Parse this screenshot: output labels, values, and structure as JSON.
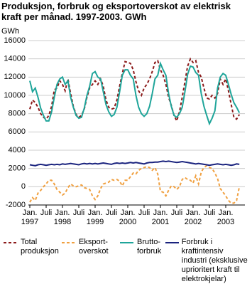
{
  "chart_data": {
    "type": "line",
    "title": "Produksjon, forbruk og eksportoverskot av elektrisk\nkraft per månad. 1997-2003. GWh",
    "y_label": "GWh",
    "categories": [
      "Jan.",
      null,
      null,
      null,
      null,
      null,
      "Juli",
      null,
      null,
      null,
      null,
      null,
      "Jan.",
      null,
      null,
      null,
      null,
      null,
      "Juli",
      null,
      null,
      null,
      null,
      null,
      "Jan.",
      null,
      null,
      null,
      null,
      null,
      "Juli",
      null,
      null,
      null,
      null,
      null,
      "Jan.",
      null,
      null,
      null,
      null,
      null,
      "Juli",
      null,
      null,
      null,
      null,
      null,
      "Jan.",
      null,
      null,
      null,
      null,
      null,
      "Juli",
      null,
      null,
      null,
      null,
      null,
      "Jan.",
      null,
      null,
      null,
      null,
      null,
      "Juli",
      null,
      null,
      null,
      null,
      null,
      "Jan.",
      null,
      null,
      null,
      null,
      null
    ],
    "years": [
      "1997",
      "1998",
      "1999",
      "2000",
      "2001",
      "2002",
      "2003"
    ],
    "ylim": [
      -2000,
      16000
    ],
    "yticks": [
      -2000,
      0,
      2000,
      4000,
      6000,
      8000,
      10000,
      12000,
      14000,
      16000
    ],
    "grid": true,
    "series": [
      {
        "name": "Total\nproduksjon",
        "color": "#8b1a1a",
        "dash": "4,3",
        "values": [
          8500,
          9500,
          9200,
          8700,
          8000,
          7600,
          7400,
          7800,
          8800,
          10600,
          10800,
          11600,
          11200,
          10500,
          11800,
          10200,
          8800,
          7900,
          7600,
          7800,
          8500,
          9800,
          10800,
          11200,
          11600,
          11200,
          11800,
          11000,
          9500,
          8700,
          8500,
          8600,
          9500,
          11000,
          12400,
          13700,
          13600,
          13500,
          12800,
          11500,
          10500,
          10000,
          10800,
          11200,
          11800,
          12600,
          13600,
          13800,
          12800,
          12200,
          11200,
          9800,
          8900,
          7800,
          7200,
          8200,
          9800,
          11500,
          13200,
          14000,
          13600,
          13800,
          12500,
          12000,
          10800,
          9700,
          9600,
          10000,
          9700,
          10200,
          11800,
          11200,
          11800,
          10500,
          9000,
          7600,
          7400,
          7900
        ]
      },
      {
        "name": "Eksport-\noverskot",
        "color": "#f0a040",
        "dash": "4,3",
        "values": [
          -1700,
          -1200,
          -1500,
          -700,
          -400,
          0,
          300,
          700,
          700,
          300,
          -300,
          -600,
          -900,
          -700,
          -100,
          300,
          100,
          0,
          100,
          200,
          -100,
          -200,
          -300,
          -1000,
          -1400,
          -1000,
          -200,
          300,
          400,
          500,
          800,
          700,
          800,
          600,
          100,
          700,
          700,
          1100,
          1500,
          1400,
          1800,
          2000,
          2100,
          2200,
          2100,
          1800,
          2100,
          1400,
          -500,
          -600,
          -1000,
          -400,
          100,
          0,
          -300,
          0,
          800,
          1000,
          800,
          700,
          400,
          1200,
          300,
          1600,
          2100,
          2300,
          2100,
          2000,
          1500,
          900,
          -200,
          -600,
          -1000,
          -1500,
          -1800,
          -1800,
          -1500,
          0
        ]
      },
      {
        "name": "Brutto-\nforbruk",
        "color": "#1fa59a",
        "dash": "",
        "values": [
          11600,
          10400,
          10800,
          9800,
          8600,
          7800,
          7200,
          7200,
          8200,
          9800,
          11200,
          11800,
          12000,
          11200,
          11600,
          9800,
          8700,
          7800,
          7500,
          7600,
          8600,
          10000,
          11000,
          12400,
          12600,
          12000,
          11800,
          10400,
          9000,
          8200,
          7700,
          7900,
          8700,
          10400,
          12200,
          12800,
          12800,
          12200,
          11800,
          10000,
          8700,
          8000,
          7700,
          8000,
          8800,
          10200,
          11800,
          12200,
          13500,
          12800,
          12200,
          10200,
          8800,
          7800,
          7600,
          8000,
          8700,
          10400,
          12300,
          13200,
          13100,
          12500,
          12200,
          10200,
          8800,
          7800,
          6900,
          7500,
          8300,
          10800,
          12000,
          12400,
          12200,
          11200,
          10100,
          9200,
          8700,
          8100
        ]
      },
      {
        "name": "Forbruk i kraftintensiv\nindustri (eksklusive\nuprioritert kraft til\nelektrokjelar)",
        "color": "#1a237e",
        "dash": "",
        "values": [
          2400,
          2350,
          2300,
          2400,
          2450,
          2400,
          2350,
          2400,
          2450,
          2400,
          2450,
          2400,
          2500,
          2450,
          2500,
          2550,
          2500,
          2450,
          2400,
          2500,
          2550,
          2500,
          2550,
          2500,
          2550,
          2500,
          2550,
          2600,
          2550,
          2500,
          2450,
          2550,
          2600,
          2550,
          2600,
          2550,
          2600,
          2650,
          2600,
          2650,
          2600,
          2550,
          2500,
          2600,
          2650,
          2650,
          2700,
          2700,
          2750,
          2800,
          2750,
          2800,
          2750,
          2700,
          2650,
          2700,
          2750,
          2700,
          2650,
          2600,
          2550,
          2500,
          2550,
          2500,
          2450,
          2400,
          2350,
          2400,
          2450,
          2500,
          2450,
          2400,
          2450,
          2400,
          2350,
          2400,
          2500,
          2450
        ]
      }
    ]
  }
}
